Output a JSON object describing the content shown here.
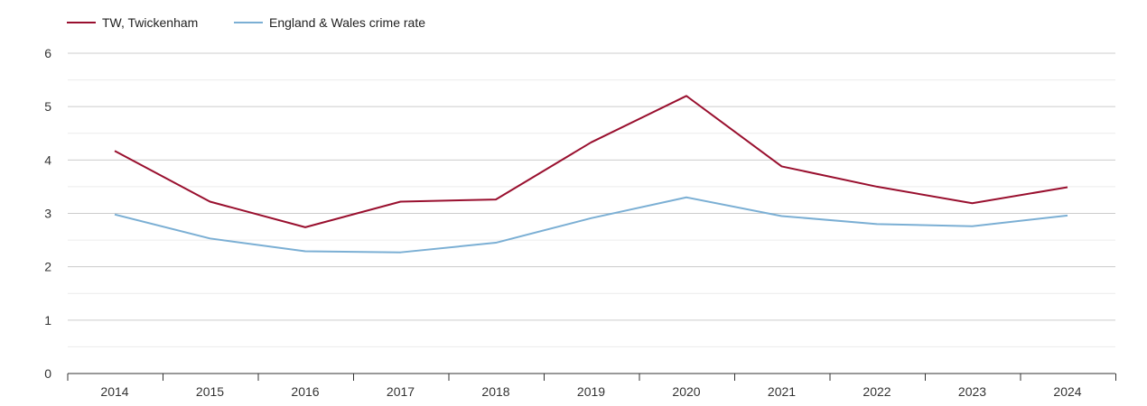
{
  "chart_data": {
    "type": "line",
    "title": "",
    "xlabel": "",
    "ylabel": "",
    "x": [
      2014,
      2015,
      2016,
      2017,
      2018,
      2019,
      2020,
      2021,
      2022,
      2023,
      2024
    ],
    "ylim": [
      0,
      6
    ],
    "yticks": [
      0,
      1,
      2,
      3,
      4,
      5,
      6
    ],
    "grid": true,
    "legend_position": "top-left",
    "series": [
      {
        "name": "TW, Twickenham",
        "color": "#990f2e",
        "values": [
          4.17,
          3.22,
          2.74,
          3.22,
          3.26,
          4.33,
          5.2,
          3.88,
          3.5,
          3.19,
          3.49
        ]
      },
      {
        "name": "England & Wales crime rate",
        "color": "#7bafd4",
        "values": [
          2.98,
          2.53,
          2.29,
          2.27,
          2.45,
          2.91,
          3.3,
          2.95,
          2.8,
          2.76,
          2.96
        ]
      }
    ]
  }
}
